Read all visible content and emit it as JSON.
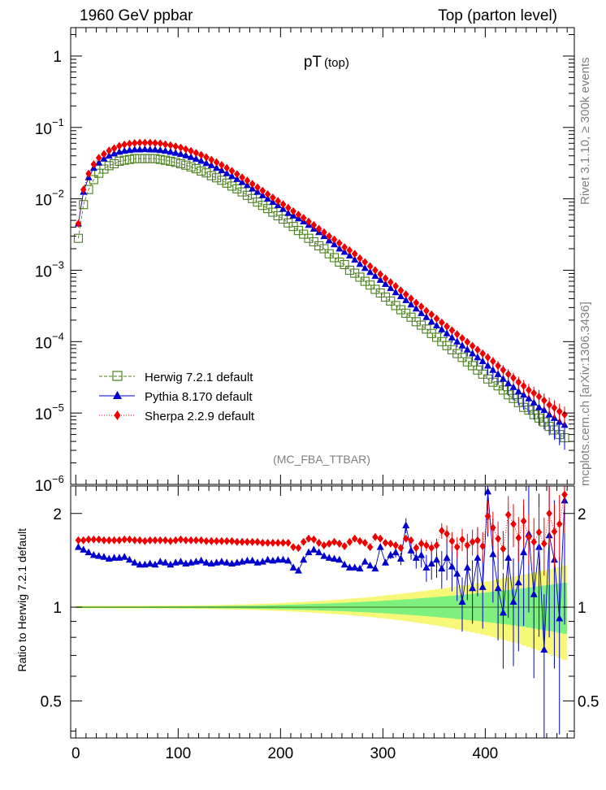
{
  "header": {
    "left": "1960 GeV ppbar",
    "right": "Top (parton level)"
  },
  "side_label_upper": "Rivet 3.1.10, ≥ 300k events",
  "side_label_lower": "mcplots.cern.ch [arXiv:1306.3436]",
  "analysis_tag": "(MC_FBA_TTBAR)",
  "colors": {
    "herwig": "#4a7f1e",
    "pythia": "#0000cc",
    "sherpa": "#ee0000",
    "band_inner": "#7ef07e",
    "band_outer": "#f8f878"
  },
  "chart_data": [
    {
      "type": "line",
      "title": "pT",
      "title_sub": "(top)",
      "scale": "log",
      "xlim": [
        -5,
        487
      ],
      "ylim": [
        1e-06,
        2.5
      ],
      "x_ticks": [
        "0",
        "100",
        "200",
        "300",
        "400"
      ],
      "y_ticks": [
        {
          "value": 1,
          "label": "1"
        },
        {
          "value": 0.1,
          "label": "10",
          "exp": "−1"
        },
        {
          "value": 0.01,
          "label": "10",
          "exp": "−2"
        },
        {
          "value": 0.001,
          "label": "10",
          "exp": "−3"
        },
        {
          "value": 0.0001,
          "label": "10",
          "exp": "−4"
        },
        {
          "value": 1e-05,
          "label": "10",
          "exp": "−5"
        },
        {
          "value": 1e-06,
          "label": "10",
          "exp": "−6"
        }
      ],
      "legend": [
        "Herwig 7.2.1 default",
        "Pythia 8.170 default",
        "Sherpa 2.2.9 default"
      ],
      "legend_placement": "lower-left",
      "x": [
        2.5,
        7.5,
        12.5,
        17.5,
        22.5,
        27.5,
        32.5,
        37.5,
        42.5,
        47.5,
        52.5,
        57.5,
        62.5,
        67.5,
        72.5,
        77.5,
        82.5,
        87.5,
        92.5,
        97.5,
        102.5,
        107.5,
        112.5,
        117.5,
        122.5,
        127.5,
        132.5,
        137.5,
        142.5,
        147.5,
        152.5,
        157.5,
        162.5,
        167.5,
        172.5,
        177.5,
        182.5,
        187.5,
        192.5,
        197.5,
        202.5,
        207.5,
        212.5,
        217.5,
        222.5,
        227.5,
        232.5,
        237.5,
        242.5,
        247.5,
        252.5,
        257.5,
        262.5,
        267.5,
        272.5,
        277.5,
        282.5,
        287.5,
        292.5,
        297.5,
        302.5,
        307.5,
        312.5,
        317.5,
        322.5,
        327.5,
        332.5,
        337.5,
        342.5,
        347.5,
        352.5,
        357.5,
        362.5,
        367.5,
        372.5,
        377.5,
        382.5,
        387.5,
        392.5,
        397.5,
        402.5,
        407.5,
        412.5,
        417.5,
        422.5,
        427.5,
        432.5,
        437.5,
        442.5,
        447.5,
        452.5,
        457.5,
        462.5,
        467.5,
        472.5,
        477.5
      ],
      "series": [
        {
          "name": "Herwig 7.2.1 default",
          "values": [
            0.0028,
            0.0083,
            0.0135,
            0.0186,
            0.0228,
            0.0261,
            0.0291,
            0.031,
            0.0336,
            0.0347,
            0.0356,
            0.0366,
            0.0366,
            0.0366,
            0.0366,
            0.0366,
            0.0356,
            0.0347,
            0.0336,
            0.0324,
            0.031,
            0.0296,
            0.028,
            0.0264,
            0.0245,
            0.0231,
            0.0211,
            0.0197,
            0.0182,
            0.0166,
            0.0151,
            0.0138,
            0.0125,
            0.0112,
            0.0101,
            0.009,
            0.0081,
            0.0073,
            0.0065,
            0.0058,
            0.0052,
            0.0046,
            0.0041,
            0.0036,
            0.0032,
            0.0028,
            0.0025,
            0.0022,
            0.002,
            0.0017,
            0.0015,
            0.0013,
            0.0012,
            0.001,
            0.00091,
            0.0008,
            0.0007,
            0.00062,
            0.00054,
            0.00048,
            0.00042,
            0.00037,
            0.00032,
            0.00028,
            0.00025,
            0.00022,
            0.00019,
            0.00017,
            0.00015,
            0.00013,
            0.000115,
            0.0001,
            8.8e-05,
            7.7e-05,
            6.8e-05,
            6e-05,
            5.2e-05,
            4.6e-05,
            4e-05,
            3.5e-05,
            3e-05,
            2.7e-05,
            2.4e-05,
            2.1e-05,
            1.8e-05,
            1.6e-05,
            1.4e-05,
            1.2e-05,
            1.1e-05,
            9.5e-06,
            8.5e-06,
            7.5e-06,
            6.5e-06,
            5.8e-06,
            5e-06,
            4.5e-06
          ]
        },
        {
          "name": "Pythia 8.170 default",
          "values": [
            0.0045,
            0.0125,
            0.02,
            0.027,
            0.032,
            0.0365,
            0.04,
            0.043,
            0.0455,
            0.047,
            0.048,
            0.049,
            0.049,
            0.0495,
            0.049,
            0.0488,
            0.048,
            0.047,
            0.0455,
            0.044,
            0.0425,
            0.0405,
            0.0385,
            0.0362,
            0.034,
            0.0316,
            0.0295,
            0.0271,
            0.025,
            0.0228,
            0.0208,
            0.0189,
            0.0171,
            0.0155,
            0.0139,
            0.0125,
            0.0112,
            0.01,
            0.009,
            0.0081,
            0.0072,
            0.0063,
            0.0058,
            0.0053,
            0.0048,
            0.0043,
            0.0038,
            0.0034,
            0.003,
            0.0026,
            0.0023,
            0.002,
            0.0018,
            0.0016,
            0.0014,
            0.00122,
            0.00107,
            0.00094,
            0.00083,
            0.00073,
            0.00064,
            0.00056,
            0.00049,
            0.00043,
            0.00038,
            0.00033,
            0.00029,
            0.00025,
            0.00022,
            0.00019,
            0.000168,
            0.000148,
            0.00013,
            0.000114,
            0.0001,
            8.8e-05,
            7.7e-05,
            6.8e-05,
            6e-05,
            5.3e-05,
            4.6e-05,
            4e-05,
            3.5e-05,
            3e-05,
            2.6e-05,
            2.3e-05,
            2e-05,
            1.8e-05,
            1.6e-05,
            1.4e-05,
            1.2e-05,
            1.1e-05,
            9.5e-06,
            8.5e-06,
            7.5e-06,
            6.8e-06
          ]
        },
        {
          "name": "Sherpa 2.2.9 default",
          "values": [
            0.0045,
            0.0135,
            0.0225,
            0.0305,
            0.0375,
            0.0425,
            0.0475,
            0.051,
            0.055,
            0.0575,
            0.059,
            0.0605,
            0.061,
            0.061,
            0.061,
            0.0605,
            0.0598,
            0.058,
            0.0562,
            0.0542,
            0.0522,
            0.0495,
            0.0468,
            0.044,
            0.0412,
            0.0382,
            0.0352,
            0.0325,
            0.0298,
            0.0271,
            0.0246,
            0.0222,
            0.02,
            0.018,
            0.0162,
            0.0145,
            0.013,
            0.0116,
            0.0104,
            0.0093,
            0.0084,
            0.0075,
            0.0067,
            0.006,
            0.0054,
            0.0048,
            0.0043,
            0.0038,
            0.0034,
            0.003,
            0.0027,
            0.0024,
            0.0021,
            0.0019,
            0.0017,
            0.00147,
            0.0013,
            0.00114,
            0.001,
            0.00088,
            0.00077,
            0.00068,
            0.0006,
            0.00052,
            0.00046,
            0.0004,
            0.00035,
            0.00031,
            0.00027,
            0.00024,
            0.00021,
            0.000185,
            0.000163,
            0.000144,
            0.000127,
            0.000112,
            9.9e-05,
            8.7e-05,
            7.7e-05,
            6.8e-05,
            6e-05,
            5.3e-05,
            4.6e-05,
            4e-05,
            3.5e-05,
            3.1e-05,
            2.7e-05,
            2.4e-05,
            2.1e-05,
            1.9e-05,
            1.7e-05,
            1.5e-05,
            1.3e-05,
            1.18e-05,
            1.05e-05,
            9.5e-06
          ]
        }
      ]
    },
    {
      "type": "line",
      "ylabel": "Ratio to Herwig 7.2.1 default",
      "scale": "log",
      "xlim": [
        -5,
        487
      ],
      "ylim": [
        0.38,
        2.45
      ],
      "y_ticks": [
        {
          "value": 2,
          "label": "2"
        },
        {
          "value": 1,
          "label": "1"
        },
        {
          "value": 0.5,
          "label": "0.5"
        }
      ],
      "x": [
        2.5,
        7.5,
        12.5,
        17.5,
        22.5,
        27.5,
        32.5,
        37.5,
        42.5,
        47.5,
        52.5,
        57.5,
        62.5,
        67.5,
        72.5,
        77.5,
        82.5,
        87.5,
        92.5,
        97.5,
        102.5,
        107.5,
        112.5,
        117.5,
        122.5,
        127.5,
        132.5,
        137.5,
        142.5,
        147.5,
        152.5,
        157.5,
        162.5,
        167.5,
        172.5,
        177.5,
        182.5,
        187.5,
        192.5,
        197.5,
        202.5,
        207.5,
        212.5,
        217.5,
        222.5,
        227.5,
        232.5,
        237.5,
        242.5,
        247.5,
        252.5,
        257.5,
        262.5,
        267.5,
        272.5,
        277.5,
        282.5,
        287.5,
        292.5,
        297.5,
        302.5,
        307.5,
        312.5,
        317.5,
        322.5,
        327.5,
        332.5,
        337.5,
        342.5,
        347.5,
        352.5,
        357.5,
        362.5,
        367.5,
        372.5,
        377.5,
        382.5,
        387.5,
        392.5,
        397.5,
        402.5,
        407.5,
        412.5,
        417.5,
        422.5,
        427.5,
        432.5,
        437.5,
        442.5,
        447.5,
        452.5,
        457.5,
        462.5,
        467.5,
        472.5,
        477.5
      ],
      "series": [
        {
          "name": "Pythia 8.170 default",
          "values": [
            1.56,
            1.53,
            1.5,
            1.47,
            1.46,
            1.45,
            1.43,
            1.44,
            1.44,
            1.45,
            1.42,
            1.39,
            1.37,
            1.37,
            1.38,
            1.37,
            1.4,
            1.39,
            1.37,
            1.39,
            1.4,
            1.38,
            1.39,
            1.4,
            1.41,
            1.39,
            1.38,
            1.39,
            1.4,
            1.39,
            1.38,
            1.39,
            1.4,
            1.41,
            1.41,
            1.39,
            1.4,
            1.42,
            1.41,
            1.42,
            1.42,
            1.41,
            1.34,
            1.31,
            1.42,
            1.5,
            1.53,
            1.5,
            1.46,
            1.44,
            1.43,
            1.42,
            1.37,
            1.34,
            1.34,
            1.33,
            1.4,
            1.36,
            1.33,
            1.56,
            1.39,
            1.47,
            1.5,
            1.43,
            1.83,
            1.52,
            1.44,
            1.47,
            1.34,
            1.38,
            1.42,
            1.33,
            1.44,
            1.35,
            1.28,
            1.04,
            1.34,
            1.15,
            1.44,
            1.16,
            2.35,
            1.48,
            1.15,
            0.96,
            1.44,
            1.04,
            1.2,
            1.5,
            1.72,
            1.1,
            1.56,
            0.73,
            1.7,
            1.42,
            0.92,
            2.2
          ]
        },
        {
          "name": "Sherpa 2.2.9 default",
          "values": [
            1.64,
            1.64,
            1.65,
            1.65,
            1.65,
            1.64,
            1.64,
            1.64,
            1.64,
            1.65,
            1.65,
            1.64,
            1.64,
            1.63,
            1.64,
            1.64,
            1.64,
            1.64,
            1.63,
            1.64,
            1.65,
            1.64,
            1.64,
            1.64,
            1.64,
            1.63,
            1.63,
            1.63,
            1.63,
            1.63,
            1.63,
            1.62,
            1.62,
            1.62,
            1.62,
            1.62,
            1.61,
            1.61,
            1.61,
            1.61,
            1.61,
            1.61,
            1.56,
            1.55,
            1.62,
            1.66,
            1.65,
            1.61,
            1.58,
            1.6,
            1.62,
            1.6,
            1.57,
            1.62,
            1.66,
            1.63,
            1.61,
            1.56,
            1.68,
            1.66,
            1.61,
            1.6,
            1.58,
            1.55,
            1.66,
            1.64,
            1.55,
            1.6,
            1.58,
            1.55,
            1.58,
            1.76,
            1.72,
            1.63,
            1.56,
            1.65,
            1.58,
            1.62,
            1.64,
            1.57,
            1.96,
            1.8,
            1.66,
            1.54,
            1.98,
            1.85,
            1.67,
            1.89,
            1.68,
            1.62,
            1.74,
            1.6,
            2.0,
            1.75,
            1.85,
            2.3
          ]
        }
      ]
    }
  ]
}
